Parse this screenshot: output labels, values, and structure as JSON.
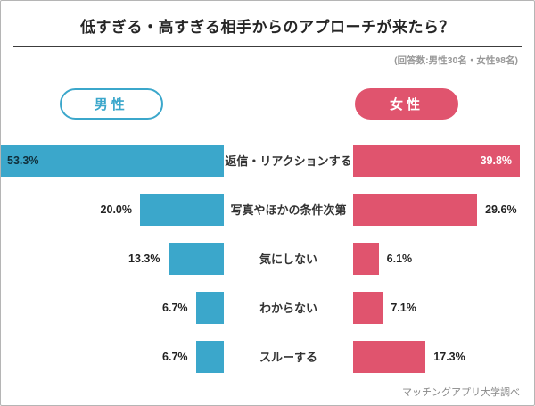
{
  "title": "低すぎる・高すぎる相手からのアプローチが来たら？",
  "respondents_note": "(回答数:男性30名・女性98名)",
  "legend": {
    "male": "男性",
    "female": "女性"
  },
  "source": "マッチングアプリ大学調べ",
  "colors": {
    "male": "#3BA7CB",
    "female": "#E0546E"
  },
  "chart_data": {
    "type": "bar",
    "orientation": "horizontal-butterfly",
    "title": "低すぎる・高すぎる相手からのアプローチが来たら？",
    "categories": [
      "返信・リアクションする",
      "写真やほかの条件次第",
      "気にしない",
      "わからない",
      "スルーする"
    ],
    "series": [
      {
        "name": "男性",
        "values": [
          53.3,
          20.0,
          13.3,
          6.7,
          6.7
        ]
      },
      {
        "name": "女性",
        "values": [
          39.8,
          29.6,
          6.1,
          7.1,
          17.3
        ]
      }
    ],
    "value_suffix": "%",
    "legend_position": "top",
    "grid": false
  }
}
